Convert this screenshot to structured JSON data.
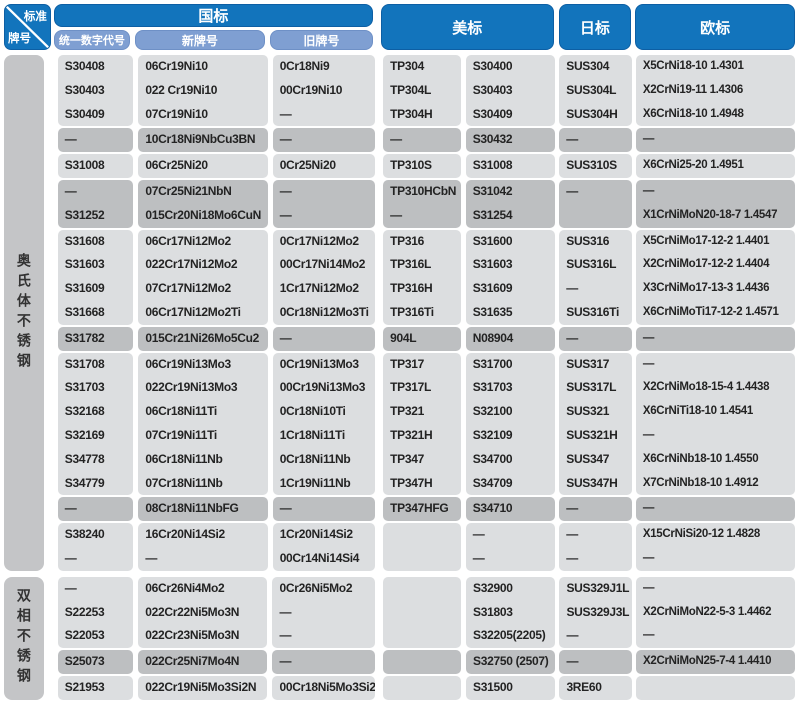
{
  "colors": {
    "header_blue": "#1274bc",
    "header_blue_edge": "#0d5fa4",
    "subheader_blue": "#7f9fd2",
    "row_light": "#dcdee0",
    "row_highlight": "#bdbfc1",
    "category_gray": "#c4c5c7"
  },
  "corner": {
    "top": "标准",
    "bottom": "牌号"
  },
  "columns": {
    "gb": {
      "label": "国标",
      "sub": [
        "统一数字代号",
        "新牌号",
        "旧牌号"
      ]
    },
    "us": {
      "label": "美标"
    },
    "jp": {
      "label": "日标"
    },
    "eu": {
      "label": "欧标"
    }
  },
  "column_keys": [
    "unified-number-code",
    "new-grade",
    "old-grade",
    "astm-grade",
    "uns-number",
    "jis-grade",
    "en-grade"
  ],
  "sections": [
    {
      "category": "奥氏体不锈钢",
      "rows": [
        {
          "shade": "light",
          "cells": [
            "S30408",
            "06Cr19Ni10",
            "0Cr18Ni9",
            "TP304",
            "S30400",
            "SUS304",
            "X5CrNi18-10 1.4301"
          ]
        },
        {
          "shade": "light",
          "cells": [
            "S30403",
            "022 Cr19Ni10",
            "00Cr19Ni10",
            "TP304L",
            "S30403",
            "SUS304L",
            "X2CrNi19-11 1.4306"
          ]
        },
        {
          "shade": "light",
          "cells": [
            "S30409",
            "07Cr19Ni10",
            "—",
            "TP304H",
            "S30409",
            "SUS304H",
            "X6CrNi18-10 1.4948"
          ]
        },
        {
          "shade": "dark",
          "cells": [
            "—",
            "10Cr18Ni9NbCu3BN",
            "—",
            "—",
            "S30432",
            "—",
            "—"
          ]
        },
        {
          "shade": "light",
          "cells": [
            "S31008",
            "06Cr25Ni20",
            "0Cr25Ni20",
            "TP310S",
            "S31008",
            "SUS310S",
            "X6CrNi25-20 1.4951"
          ]
        },
        {
          "shade": "dark",
          "cells": [
            "—",
            "07Cr25Ni21NbN",
            "—",
            "TP310HCbN",
            "S31042",
            "—",
            "—"
          ]
        },
        {
          "shade": "dark",
          "cells": [
            "S31252",
            "015Cr20Ni18Mo6CuN",
            "—",
            "—",
            "S31254",
            "",
            "X1CrNiMoN20-18-7 1.4547"
          ]
        },
        {
          "shade": "light",
          "cells": [
            "S31608",
            "06Cr17Ni12Mo2",
            "0Cr17Ni12Mo2",
            "TP316",
            "S31600",
            "SUS316",
            "X5CrNiMo17-12-2 1.4401"
          ]
        },
        {
          "shade": "light",
          "cells": [
            "S31603",
            "022Cr17Ni12Mo2",
            "00Cr17Ni14Mo2",
            "TP316L",
            "S31603",
            "SUS316L",
            "X2CrNiMo17-12-2 1.4404"
          ]
        },
        {
          "shade": "light",
          "cells": [
            "S31609",
            "07Cr17Ni12Mo2",
            "1Cr17Ni12Mo2",
            "TP316H",
            "S31609",
            "—",
            "X3CrNiMo17-13-3 1.4436"
          ]
        },
        {
          "shade": "light",
          "cells": [
            "S31668",
            "06Cr17Ni12Mo2Ti",
            "0Cr18Ni12Mo3Ti",
            "TP316Ti",
            "S31635",
            "SUS316Ti",
            "X6CrNiMoTi17-12-2 1.4571"
          ]
        },
        {
          "shade": "dark",
          "cells": [
            "S31782",
            "015Cr21Ni26Mo5Cu2",
            "—",
            "904L",
            "N08904",
            "—",
            "—"
          ]
        },
        {
          "shade": "light",
          "cells": [
            "S31708",
            "06Cr19Ni13Mo3",
            "0Cr19Ni13Mo3",
            "TP317",
            "S31700",
            "SUS317",
            "—"
          ]
        },
        {
          "shade": "light",
          "cells": [
            "S31703",
            "022Cr19Ni13Mo3",
            "00Cr19Ni13Mo3",
            "TP317L",
            "S31703",
            "SUS317L",
            "X2CrNiMo18-15-4 1.4438"
          ]
        },
        {
          "shade": "light",
          "cells": [
            "S32168",
            "06Cr18Ni11Ti",
            "0Cr18Ni10Ti",
            "TP321",
            "S32100",
            "SUS321",
            "X6CrNiTi18-10 1.4541"
          ]
        },
        {
          "shade": "light",
          "cells": [
            "S32169",
            "07Cr19Ni11Ti",
            "1Cr18Ni11Ti",
            "TP321H",
            "S32109",
            "SUS321H",
            "—"
          ]
        },
        {
          "shade": "light",
          "cells": [
            "S34778",
            "06Cr18Ni11Nb",
            "0Cr18Ni11Nb",
            "TP347",
            "S34700",
            "SUS347",
            "X6CrNiNb18-10 1.4550"
          ]
        },
        {
          "shade": "light",
          "cells": [
            "S34779",
            "07Cr18Ni11Nb",
            "1Cr19Ni11Nb",
            "TP347H",
            "S34709",
            "SUS347H",
            "X7CrNiNb18-10 1.4912"
          ]
        },
        {
          "shade": "dark",
          "cells": [
            "—",
            "08Cr18Ni11NbFG",
            "—",
            "TP347HFG",
            "S34710",
            "—",
            "—"
          ]
        },
        {
          "shade": "light",
          "cells": [
            "S38240",
            "16Cr20Ni14Si2",
            "1Cr20Ni14Si2",
            "",
            "—",
            "—",
            "X15CrNiSi20-12 1.4828"
          ]
        },
        {
          "shade": "light",
          "cells": [
            "—",
            "—",
            "00Cr14Ni14Si4",
            "",
            "—",
            "—",
            "—"
          ]
        }
      ]
    },
    {
      "category": "双相不锈钢",
      "rows": [
        {
          "shade": "light",
          "cells": [
            "—",
            "06Cr26Ni4Mo2",
            "0Cr26Ni5Mo2",
            "",
            "S32900",
            "SUS329J1L",
            "—"
          ]
        },
        {
          "shade": "light",
          "cells": [
            "S22253",
            "022Cr22Ni5Mo3N",
            "—",
            "",
            "S31803",
            "SUS329J3L",
            "X2CrNiMoN22-5-3 1.4462"
          ]
        },
        {
          "shade": "light",
          "cells": [
            "S22053",
            "022Cr23Ni5Mo3N",
            "—",
            "",
            "S32205(2205)",
            "—",
            "—"
          ]
        },
        {
          "shade": "dark",
          "cells": [
            "S25073",
            "022Cr25Ni7Mo4N",
            "—",
            "",
            "S32750 (2507)",
            "—",
            "X2CrNiMoN25-7-4 1.4410"
          ]
        },
        {
          "shade": "light",
          "cells": [
            "S21953",
            "022Cr19Ni5Mo3Si2N",
            "00Cr18Ni5Mo3Si2",
            "",
            "S31500",
            "3RE60",
            ""
          ]
        }
      ]
    }
  ]
}
